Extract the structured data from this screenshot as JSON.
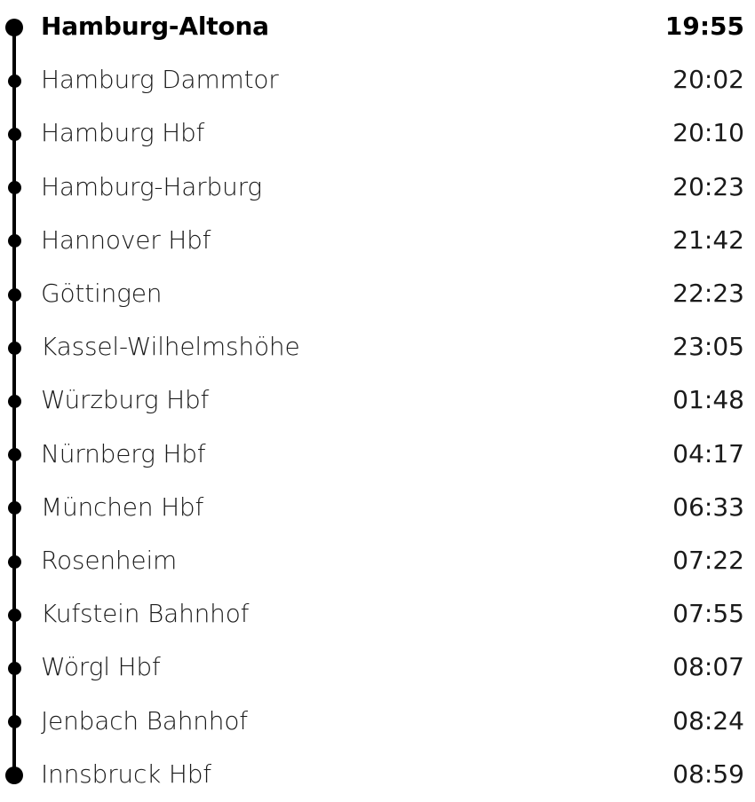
{
  "stops": [
    {
      "name": "Hamburg-Altona",
      "time": "19:55"
    },
    {
      "name": "Hamburg Dammtor",
      "time": "20:02"
    },
    {
      "name": "Hamburg Hbf",
      "time": "20:10"
    },
    {
      "name": "Hamburg-Harburg",
      "time": "20:23"
    },
    {
      "name": "Hannover Hbf",
      "time": "21:42"
    },
    {
      "name": "Göttingen",
      "time": "22:23"
    },
    {
      "name": "Kassel-Wilhelmshöhe",
      "time": "23:05"
    },
    {
      "name": "Würzburg Hbf",
      "time": "01:48"
    },
    {
      "name": "Nürnberg Hbf",
      "time": "04:17"
    },
    {
      "name": "München Hbf",
      "time": "06:33"
    },
    {
      "name": "Rosenheim",
      "time": "07:22"
    },
    {
      "name": "Kufstein Bahnhof",
      "time": "07:55"
    },
    {
      "name": "Wörgl Hbf",
      "time": "08:07"
    },
    {
      "name": "Jenbach Bahnhof",
      "time": "08:24"
    },
    {
      "name": "Innsbruck Hbf",
      "time": "08:59"
    }
  ],
  "colors": {
    "line": "#000000",
    "text": "#1a1a1a"
  }
}
